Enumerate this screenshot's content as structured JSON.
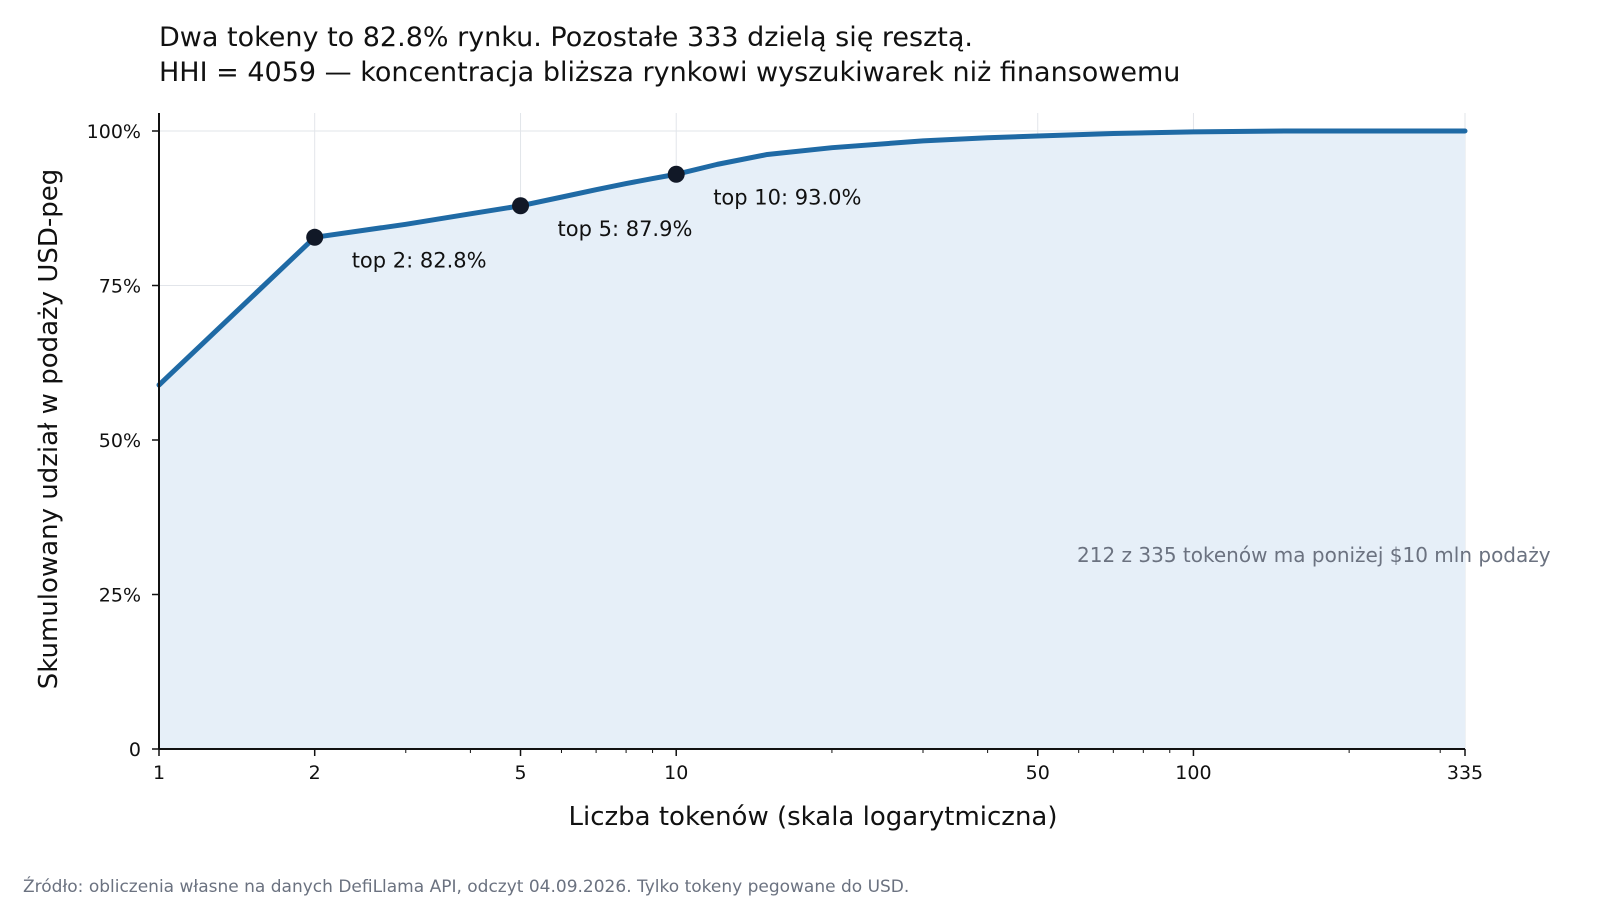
{
  "chart_data": {
    "type": "area",
    "title": "Dwa tokeny to 82.8% rynku. Pozostałe 333 dzielą się resztą.",
    "subtitle": "HHI = 4059 — koncentracja bliższa rynkowi wyszukiwarek niż finansowemu",
    "xlabel": "Liczba tokenów (skala logarytmiczna)",
    "ylabel": "Skumulowany udział w podaży USD-peg",
    "x_scale": "log",
    "xlim": [
      1,
      335
    ],
    "ylim": [
      0,
      100
    ],
    "grid": true,
    "x_ticks": [
      {
        "value": 1,
        "label": "1"
      },
      {
        "value": 2,
        "label": "2"
      },
      {
        "value": 5,
        "label": "5"
      },
      {
        "value": 10,
        "label": "10"
      },
      {
        "value": 50,
        "label": "50"
      },
      {
        "value": 100,
        "label": "100"
      },
      {
        "value": 335,
        "label": "335"
      }
    ],
    "y_ticks": [
      {
        "value": 0,
        "label": "0"
      },
      {
        "value": 25,
        "label": "25%"
      },
      {
        "value": 50,
        "label": "50%"
      },
      {
        "value": 75,
        "label": "75%"
      },
      {
        "value": 100,
        "label": "100%"
      }
    ],
    "series": [
      {
        "color": "#1f6aa5",
        "fill": "#e6eff8",
        "x": [
          1,
          2,
          3,
          4,
          5,
          6,
          7,
          8,
          9,
          10,
          12,
          15,
          20,
          30,
          40,
          50,
          70,
          100,
          150,
          200,
          335
        ],
        "y": [
          58.9,
          82.8,
          84.9,
          86.6,
          87.9,
          89.3,
          90.5,
          91.5,
          92.3,
          93.0,
          94.6,
          96.2,
          97.3,
          98.4,
          98.9,
          99.2,
          99.6,
          99.85,
          100.0,
          100.0,
          100.0
        ]
      }
    ],
    "markers": [
      {
        "x": 2,
        "y": 82.8,
        "label": "top 2: 82.8%"
      },
      {
        "x": 5,
        "y": 87.9,
        "label": "top 5: 87.9%"
      },
      {
        "x": 10,
        "y": 93.0,
        "label": "top 10: 93.0%"
      }
    ],
    "marker_color": "#111827",
    "annotation": "212 z 335 tokenów ma poniżej $10 mln podaży",
    "source": "Źródło: obliczenia własne na danych DefiLlama API, odczyt 04.09.2026. Tylko tokeny pegowane do USD."
  }
}
